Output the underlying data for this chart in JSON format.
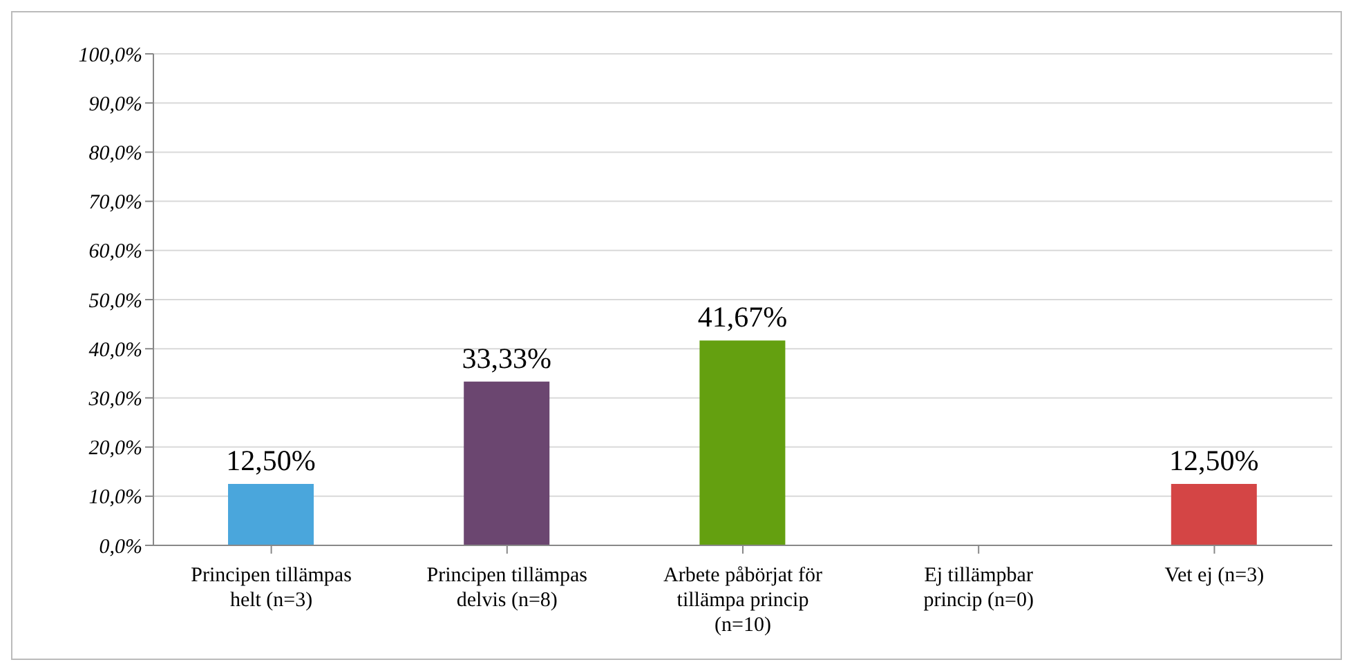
{
  "chart_data": {
    "type": "bar",
    "categories": [
      "Principen tillämpas helt (n=3)",
      "Principen tillämpas delvis (n=8)",
      "Arbete påbörjat för tillämpa princip (n=10)",
      "Ej tillämpbar princip (n=0)",
      "Vet ej (n=3)"
    ],
    "values": [
      12.5,
      33.33,
      41.67,
      0,
      12.5
    ],
    "colors": [
      "#4aa6dc",
      "#6b4670",
      "#64a010",
      "#888888",
      "#d44545"
    ],
    "value_labels": [
      "12,50%",
      "33,33%",
      "41,67%",
      null,
      "12,50%"
    ],
    "ylim": [
      0,
      100
    ],
    "yticks": [
      {
        "value": 0,
        "label": "0,0%"
      },
      {
        "value": 10,
        "label": "10,0%"
      },
      {
        "value": 20,
        "label": "20,0%"
      },
      {
        "value": 30,
        "label": "30,0%"
      },
      {
        "value": 40,
        "label": "40,0%"
      },
      {
        "value": 50,
        "label": "50,0%"
      },
      {
        "value": 60,
        "label": "60,0%"
      },
      {
        "value": 70,
        "label": "70,0%"
      },
      {
        "value": 80,
        "label": "80,0%"
      },
      {
        "value": 90,
        "label": "90,0%"
      },
      {
        "value": 100,
        "label": "100,0%"
      }
    ],
    "grid": "y",
    "legend": false
  }
}
